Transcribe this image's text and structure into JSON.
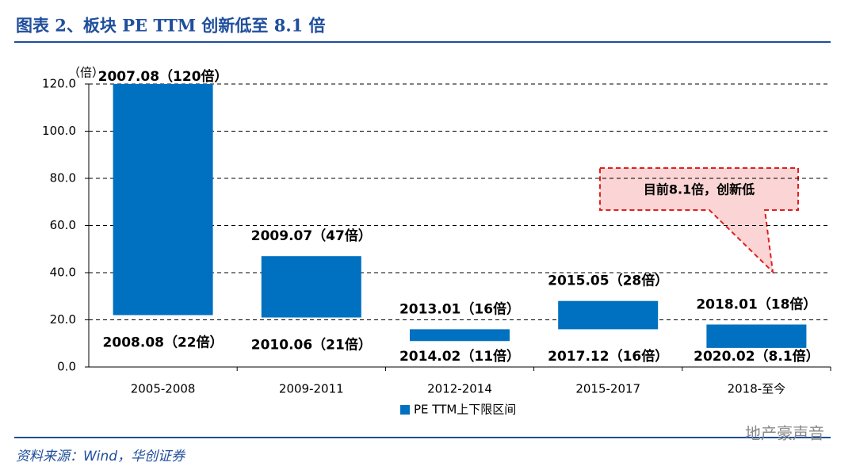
{
  "chart_data": {
    "type": "floating_bar",
    "title": "图表 2、板块 PE TTM 创新低至 8.1 倍",
    "y_unit": "（倍）",
    "categories": [
      "2005-2008",
      "2009-2011",
      "2012-2014",
      "2015-2017",
      "2018-至今"
    ],
    "series": [
      {
        "name": "PE TTM上下限区间",
        "color": "#0070c0",
        "low": [
          22,
          21,
          11,
          16,
          8.1
        ],
        "high": [
          120,
          47,
          16,
          28,
          18
        ],
        "low_labels": [
          "2008.08（22倍）",
          "2010.06（21倍）",
          "2014.02（11倍）",
          "2017.12（16倍）",
          "2020.02（8.1倍）"
        ],
        "high_labels": [
          "2007.08（120倍）",
          "2009.07（47倍）",
          "2013.01（16倍）",
          "2015.05（28倍）",
          "2018.01（18倍）"
        ]
      }
    ],
    "ylim": [
      0,
      120
    ],
    "yticks": [
      {
        "value": 0,
        "label": "0.0"
      },
      {
        "value": 20,
        "label": "20.0"
      },
      {
        "value": 40,
        "label": "40.0"
      },
      {
        "value": 60,
        "label": "60.0"
      },
      {
        "value": 80,
        "label": "80.0"
      },
      {
        "value": 100,
        "label": "100.0"
      },
      {
        "value": 120,
        "label": "120.0"
      }
    ],
    "grid": true,
    "legend": "bottom",
    "annotation": "目前8.1倍，创新低",
    "source": "资料来源：Wind，华创证券",
    "watermark": "地产豪声音"
  }
}
